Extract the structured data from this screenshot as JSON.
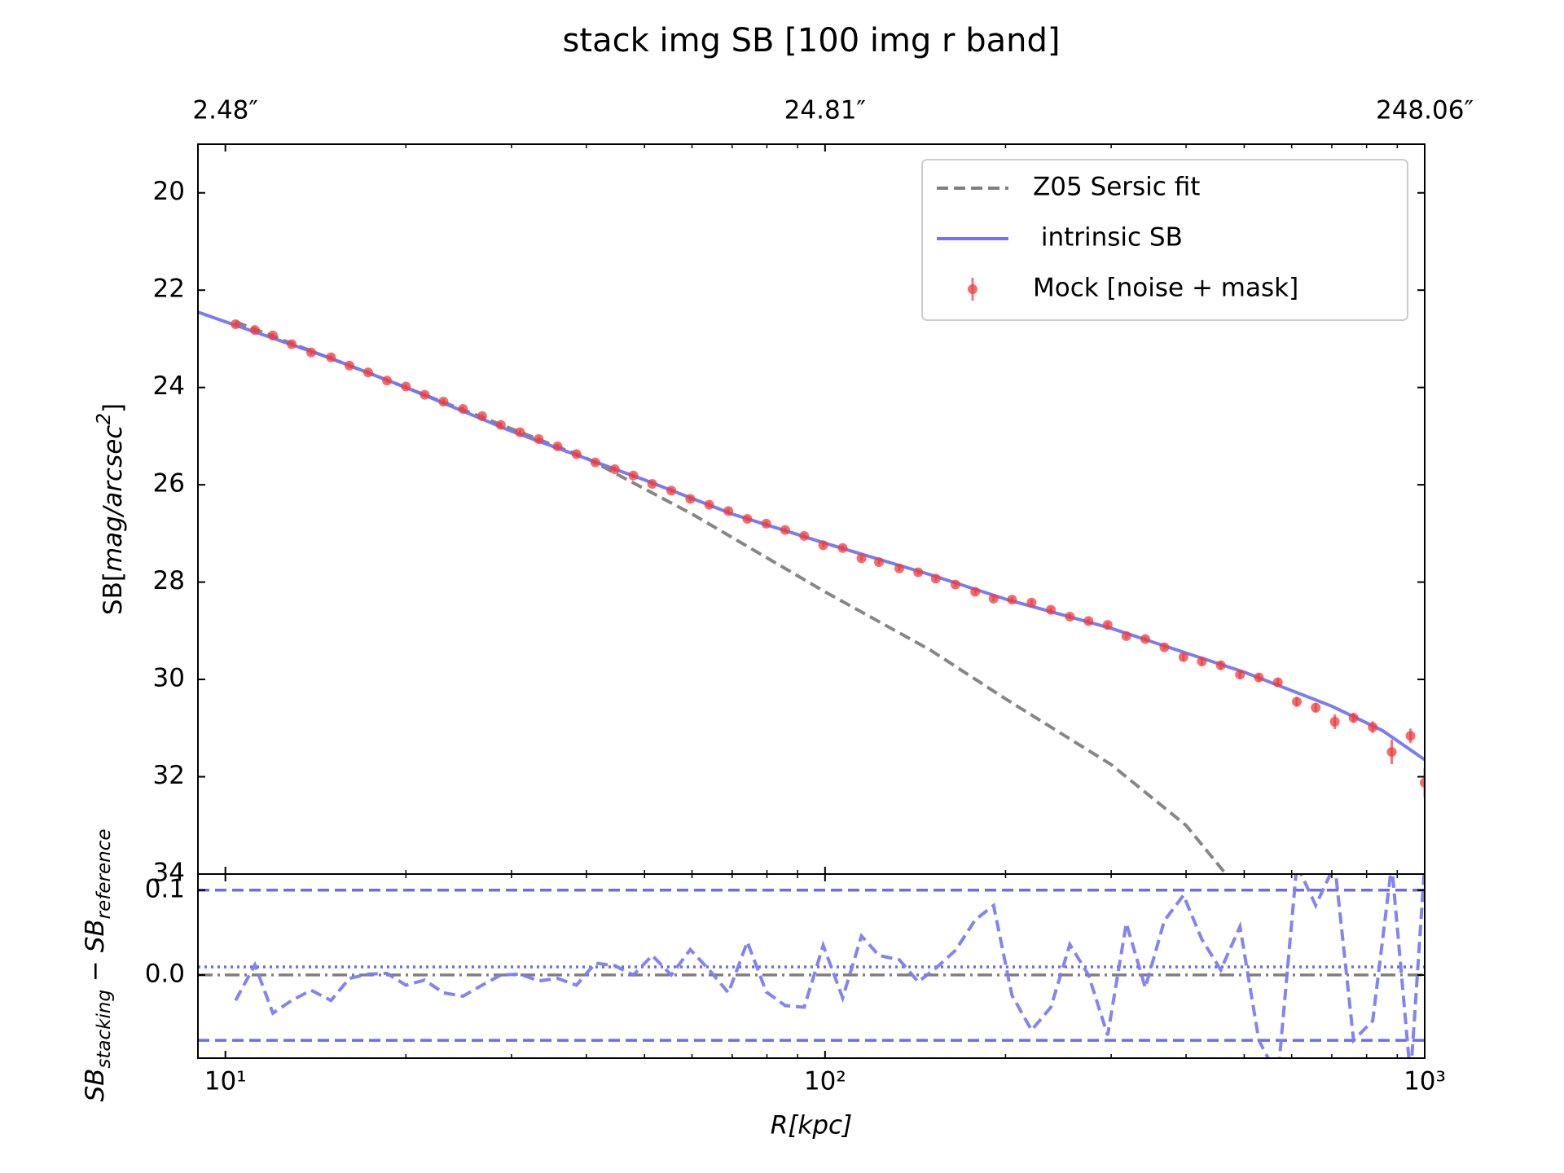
{
  "chart_data": [
    {
      "type": "line",
      "title": "stack img SB [100 img r band]",
      "ylabel": [
        "SB[",
        "mag/arcsec",
        "2",
        "]"
      ],
      "xscale": "log",
      "xlim": [
        9,
        1000
      ],
      "ylim": [
        34,
        19
      ],
      "yticks": [
        20,
        22,
        24,
        26,
        28,
        30,
        32,
        34
      ],
      "x2ticks": [
        {
          "value": 10,
          "label": "2.48″"
        },
        {
          "value": 100,
          "label": "24.81″"
        },
        {
          "value": 1000,
          "label": "248.06″"
        }
      ],
      "legend": "upper right",
      "series": [
        {
          "name": "Z05 Sersic fit",
          "kind": "line",
          "style": "dashed",
          "color": "#7f7f7f",
          "x": [
            10.4,
            20,
            40,
            60,
            100,
            150,
            200,
            300,
            400,
            466
          ],
          "values": [
            22.65,
            24.0,
            25.45,
            26.6,
            28.2,
            29.4,
            30.4,
            31.75,
            33.0,
            34.0
          ]
        },
        {
          "name": " intrinsic SB",
          "kind": "line",
          "style": "solid",
          "color": "#7474f2",
          "x": [
            9,
            10,
            15,
            20,
            30,
            50,
            70,
            100,
            150,
            200,
            300,
            500,
            700,
            850,
            1000
          ],
          "values": [
            22.45,
            22.65,
            23.4,
            24.0,
            24.9,
            25.9,
            26.6,
            27.2,
            27.85,
            28.35,
            28.95,
            29.85,
            30.55,
            31.05,
            31.65
          ]
        },
        {
          "name": "Mock [noise + mask]",
          "kind": "errorbar",
          "color": "#f03c3c",
          "x": [
            10.4,
            11.2,
            12.0,
            12.9,
            13.9,
            15.0,
            16.1,
            17.3,
            18.6,
            20.0,
            21.5,
            23.1,
            24.9,
            26.8,
            28.8,
            31.0,
            33.3,
            35.8,
            38.5,
            41.4,
            44.6,
            47.9,
            51.5,
            55.4,
            59.6,
            64.1,
            69.0,
            74.2,
            79.8,
            85.8,
            92.3,
            99.3,
            107,
            115,
            123,
            133,
            143,
            153,
            165,
            178,
            191,
            205,
            221,
            238,
            256,
            275,
            296,
            318,
            342,
            368,
            396,
            425,
            457,
            492,
            529,
            569,
            612,
            658,
            708,
            761,
            819,
            881,
            947,
            1000
          ],
          "values": [
            22.7,
            22.82,
            22.93,
            23.11,
            23.28,
            23.38,
            23.55,
            23.69,
            23.86,
            23.98,
            24.15,
            24.29,
            24.44,
            24.59,
            24.77,
            24.92,
            25.06,
            25.21,
            25.37,
            25.54,
            25.68,
            25.81,
            25.98,
            26.12,
            26.29,
            26.41,
            26.54,
            26.7,
            26.8,
            26.93,
            27.05,
            27.24,
            27.3,
            27.51,
            27.59,
            27.72,
            27.8,
            27.93,
            28.05,
            28.2,
            28.34,
            28.36,
            28.42,
            28.57,
            28.71,
            28.8,
            28.88,
            29.11,
            29.17,
            29.34,
            29.54,
            29.63,
            29.71,
            29.9,
            29.96,
            30.06,
            30.46,
            30.58,
            30.87,
            30.79,
            30.98,
            31.49,
            31.16,
            32.12
          ],
          "errors": [
            0.05,
            0.05,
            0.05,
            0.05,
            0.05,
            0.05,
            0.05,
            0.05,
            0.05,
            0.05,
            0.05,
            0.05,
            0.05,
            0.05,
            0.05,
            0.05,
            0.05,
            0.05,
            0.05,
            0.05,
            0.05,
            0.05,
            0.05,
            0.05,
            0.05,
            0.05,
            0.05,
            0.05,
            0.05,
            0.05,
            0.05,
            0.05,
            0.05,
            0.05,
            0.05,
            0.05,
            0.05,
            0.05,
            0.05,
            0.05,
            0.05,
            0.05,
            0.05,
            0.05,
            0.05,
            0.05,
            0.05,
            0.05,
            0.05,
            0.05,
            0.08,
            0.08,
            0.08,
            0.08,
            0.08,
            0.08,
            0.1,
            0.1,
            0.15,
            0.1,
            0.12,
            0.25,
            0.15,
            0.3
          ]
        }
      ]
    },
    {
      "type": "line",
      "xlabel": "R[kpc]",
      "ylabel": [
        "SB",
        "stacking",
        " − SB",
        "reference"
      ],
      "xscale": "log",
      "xlim": [
        9,
        1000
      ],
      "ylim": [
        -0.098,
        0.119
      ],
      "xticks": [
        {
          "value": 10,
          "label": "10¹"
        },
        {
          "value": 100,
          "label": "10²"
        },
        {
          "value": 1000,
          "label": "10³"
        }
      ],
      "yticks": [
        {
          "value": 0,
          "label": "0.0"
        },
        0.1
      ],
      "hlines": [
        {
          "value": 0.1,
          "style": "dashed",
          "color": "#6c6cf0"
        },
        {
          "value": -0.077,
          "style": "dashed",
          "color": "#6c6cf0"
        },
        {
          "value": 0.0095,
          "style": "dotted",
          "color": "#6c6cf0"
        },
        {
          "value": 0,
          "style": "dashdot",
          "color": "#7f7f7f"
        }
      ],
      "series": [
        {
          "kind": "line",
          "style": "dashed",
          "color": "#7c7cf2",
          "x": [
            10.4,
            11.2,
            12.0,
            12.9,
            13.9,
            15.0,
            16.1,
            17.3,
            18.6,
            20.0,
            21.5,
            23.1,
            24.9,
            26.8,
            28.8,
            31.0,
            33.3,
            35.8,
            38.5,
            41.4,
            44.6,
            47.9,
            51.5,
            55.4,
            59.6,
            64.1,
            69.0,
            74.2,
            79.8,
            85.8,
            92.3,
            99.3,
            107,
            115,
            123,
            133,
            143,
            153,
            165,
            178,
            191,
            205,
            221,
            238,
            256,
            275,
            296,
            318,
            342,
            368,
            396,
            425,
            457,
            492,
            529,
            569,
            612,
            658,
            708,
            761,
            819,
            881,
            947,
            1000
          ],
          "values": [
            -0.03,
            0.012,
            -0.045,
            -0.03,
            -0.018,
            -0.03,
            -0.004,
            0.001,
            0.002,
            -0.012,
            -0.006,
            -0.021,
            -0.025,
            -0.012,
            0.0,
            0.001,
            -0.007,
            -0.004,
            -0.012,
            0.014,
            0.011,
            0.0,
            0.023,
            0.0,
            0.03,
            0.006,
            -0.021,
            0.039,
            -0.02,
            -0.036,
            -0.038,
            0.035,
            -0.027,
            0.046,
            0.023,
            0.018,
            -0.008,
            0.008,
            0.029,
            0.065,
            0.082,
            -0.024,
            -0.065,
            -0.038,
            0.036,
            0.0,
            -0.071,
            0.061,
            -0.015,
            0.064,
            0.094,
            0.042,
            0.006,
            0.057,
            -0.077,
            -0.12,
            0.13,
            0.082,
            0.13,
            -0.077,
            -0.054,
            0.13,
            -0.12,
            0.13
          ]
        }
      ]
    }
  ]
}
